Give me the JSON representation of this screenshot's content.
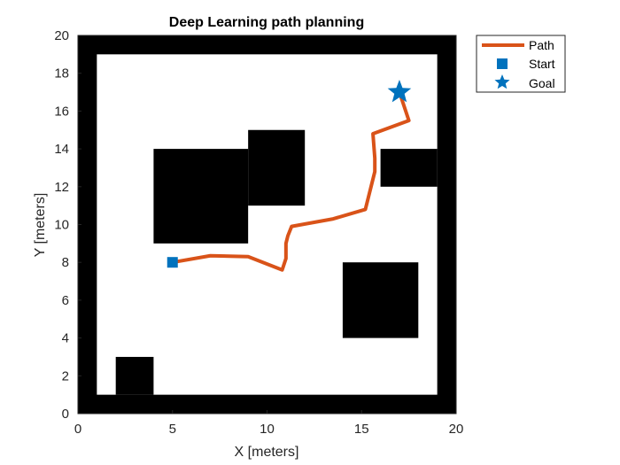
{
  "chart_data": {
    "type": "line",
    "title": "Deep Learning path planning",
    "xlabel": "X [meters]",
    "ylabel": "Y [meters]",
    "xlim": [
      0,
      20
    ],
    "ylim": [
      0,
      20
    ],
    "xticks": [
      0,
      5,
      10,
      15,
      20
    ],
    "yticks": [
      0,
      2,
      4,
      6,
      8,
      10,
      12,
      14,
      16,
      18,
      20
    ],
    "grid": false,
    "legend_position": "outside-top-right",
    "obstacle_color": "#000000",
    "free_color": "#ffffff",
    "obstacles": [
      {
        "x": [
          0,
          20
        ],
        "y": [
          0,
          1
        ]
      },
      {
        "x": [
          0,
          20
        ],
        "y": [
          19,
          20
        ]
      },
      {
        "x": [
          0,
          1
        ],
        "y": [
          0,
          20
        ]
      },
      {
        "x": [
          19,
          20
        ],
        "y": [
          0,
          20
        ]
      },
      {
        "x": [
          4,
          9
        ],
        "y": [
          9,
          14
        ]
      },
      {
        "x": [
          9,
          12
        ],
        "y": [
          11,
          15
        ]
      },
      {
        "x": [
          16,
          19
        ],
        "y": [
          12,
          14
        ]
      },
      {
        "x": [
          14,
          18
        ],
        "y": [
          4,
          8
        ]
      },
      {
        "x": [
          2,
          4
        ],
        "y": [
          1,
          3
        ]
      }
    ],
    "series": [
      {
        "name": "Path",
        "color": "#D95319",
        "x": [
          5.0,
          7.0,
          9.0,
          10.8,
          11.0,
          11.0,
          11.1,
          11.3,
          13.5,
          15.2,
          15.7,
          15.7,
          15.6,
          17.5,
          17.0
        ],
        "y": [
          8.0,
          8.35,
          8.3,
          7.6,
          8.2,
          9.0,
          9.4,
          9.9,
          10.3,
          10.8,
          12.8,
          13.5,
          14.8,
          15.5,
          17.0
        ]
      },
      {
        "name": "Start",
        "color": "#0072BD",
        "marker": "square",
        "x": [
          5.0
        ],
        "y": [
          8.0
        ]
      },
      {
        "name": "Goal",
        "color": "#0072BD",
        "marker": "star",
        "x": [
          17.0
        ],
        "y": [
          17.0
        ]
      }
    ]
  }
}
